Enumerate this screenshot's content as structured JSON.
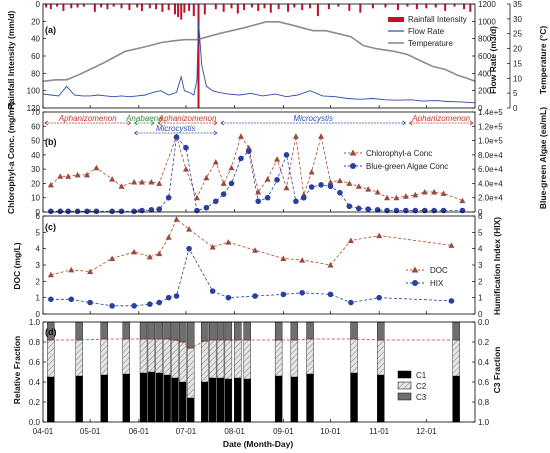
{
  "x_axis": {
    "label": "Date (Month-Day)",
    "tick_labels": [
      "04-01",
      "05-01",
      "06-01",
      "07-01",
      "08-01",
      "09-01",
      "10-01",
      "11-01",
      "12-01"
    ],
    "tick_days": [
      0,
      30,
      61,
      91,
      122,
      153,
      183,
      214,
      244
    ],
    "domain_days": [
      0,
      275
    ]
  },
  "panel_a": {
    "label": "(a)",
    "left_axis": {
      "label": "Rainfall Intensity (mm/d)",
      "ticks": [
        "0",
        "20",
        "40",
        "60",
        "80",
        "100",
        "120"
      ],
      "range": [
        0,
        120
      ],
      "inverted": true
    },
    "right_axis_1": {
      "label": "Flow Rate (m3/d)",
      "ticks": [
        "0",
        "200",
        "400",
        "600",
        "800",
        "1000",
        "1200"
      ],
      "range": [
        0,
        1200
      ]
    },
    "right_axis_2": {
      "label": "Temperature (°C)",
      "ticks": [
        "0",
        "5",
        "10",
        "15",
        "20",
        "25",
        "30",
        "35"
      ],
      "range": [
        0,
        35
      ]
    },
    "legend": [
      "Rainfall Intensity",
      "Flow Rate",
      "Temperature"
    ],
    "colors": {
      "rain": "#c0102a",
      "flow": "#2b4ab0",
      "temp": "#8c8c8c"
    }
  },
  "panel_b": {
    "label": "(b)",
    "left_axis": {
      "label": "Chlorophyl-a Conc. (mg/m³)",
      "ticks": [
        "0",
        "10",
        "20",
        "30",
        "40",
        "50",
        "60",
        "70"
      ],
      "range": [
        0,
        70
      ]
    },
    "right_axis": {
      "label": "Blue-green Algae (ea/mL)",
      "ticks": [
        "0",
        "2.0e+4",
        "4.0e+4",
        "6.0e+4",
        "8.0e+4",
        "1.0e+5",
        "1.2e+5",
        "1.4e+5"
      ],
      "range": [
        0,
        140000
      ]
    },
    "legend": [
      "Chlorophyl-a Conc",
      "Blue-green Algae Conc"
    ],
    "colors": {
      "chl": "#b5472b",
      "bga": "#2b3fa0"
    },
    "annotations": [
      {
        "text": "Aphanizomenon",
        "color": "#c0392b",
        "from": 0,
        "to": 57,
        "row": 0
      },
      {
        "text": "Anabaena",
        "color": "#2e8b3a",
        "from": 57,
        "to": 72,
        "row": 0
      },
      {
        "text": "Aphanizomenon",
        "color": "#c0392b",
        "from": 72,
        "to": 112,
        "row": 0
      },
      {
        "text": "Microcystis",
        "color": "#3050b8",
        "from": 112,
        "to": 232,
        "row": 0
      },
      {
        "text": "Aphanizomenon",
        "color": "#c0392b",
        "from": 232,
        "to": 275,
        "row": 0
      },
      {
        "text": "Microcystis",
        "color": "#3050b8",
        "from": 57,
        "to": 112,
        "row": 1
      }
    ]
  },
  "panel_c": {
    "label": "(c)",
    "left_axis": {
      "label": "DOC (mg/L)",
      "ticks": [
        "0",
        "1",
        "2",
        "3",
        "4",
        "5",
        "6"
      ],
      "range": [
        0,
        6
      ]
    },
    "right_axis": {
      "label": "Humification Index (HIX)",
      "ticks": [
        "0",
        "1",
        "2",
        "3",
        "4",
        "5",
        "6"
      ],
      "range": [
        0,
        6
      ]
    },
    "legend": [
      "DOC",
      "HIX"
    ],
    "colors": {
      "doc": "#b5472b",
      "hix": "#2b3fa0"
    }
  },
  "panel_d": {
    "label": "(d)",
    "left_axis": {
      "label": "Relative Fraction",
      "ticks": [
        "0.0",
        "0.2",
        "0.4",
        "0.6",
        "0.8",
        "1.0"
      ],
      "range": [
        0,
        1
      ]
    },
    "right_axis": {
      "label": "C3 Fraction",
      "ticks": [
        "0.0",
        "0.2",
        "0.4",
        "0.6",
        "0.8",
        "1.0"
      ],
      "range": [
        0,
        1
      ],
      "inverted": true
    },
    "legend": [
      "C1",
      "C2",
      "C3"
    ],
    "colors": {
      "c1": "#000000",
      "c2": "#d9d9d9",
      "c3": "#6e6e6e",
      "line": "#c0392b"
    }
  },
  "chart_data": {
    "type": "line",
    "panels": 4,
    "rainfall": {
      "name": "Rainfall Intensity",
      "x": [
        2,
        5,
        9,
        13,
        18,
        22,
        26,
        33,
        37,
        41,
        45,
        50,
        55,
        60,
        63,
        68,
        72,
        76,
        80,
        84,
        86,
        88,
        90,
        93,
        96,
        99,
        103,
        110,
        115,
        120,
        124,
        128,
        133,
        137,
        141,
        145,
        150,
        156,
        160,
        165,
        170,
        175,
        182,
        188,
        195,
        202,
        210,
        218,
        226,
        232,
        238,
        244,
        250,
        256,
        262,
        268,
        272
      ],
      "y": [
        4,
        6,
        3,
        8,
        5,
        4,
        3,
        9,
        4,
        6,
        3,
        5,
        7,
        4,
        8,
        5,
        6,
        9,
        7,
        12,
        15,
        18,
        10,
        8,
        14,
        120,
        12,
        6,
        9,
        5,
        11,
        7,
        4,
        8,
        5,
        10,
        6,
        9,
        4,
        7,
        5,
        14,
        6,
        3,
        8,
        10,
        5,
        4,
        7,
        3,
        6,
        5,
        4,
        8,
        3,
        6,
        9
      ]
    },
    "flow_rate": {
      "name": "Flow Rate",
      "x": [
        0,
        5,
        10,
        15,
        20,
        25,
        30,
        35,
        40,
        45,
        50,
        55,
        60,
        65,
        70,
        75,
        80,
        85,
        88,
        90,
        93,
        96,
        98,
        99,
        101,
        104,
        108,
        112,
        118,
        125,
        132,
        140,
        148,
        155,
        162,
        170,
        178,
        186,
        194,
        202,
        210,
        218,
        226,
        234,
        242,
        250,
        258,
        266,
        275
      ],
      "y": [
        160,
        150,
        140,
        250,
        150,
        140,
        140,
        150,
        140,
        130,
        140,
        130,
        140,
        150,
        180,
        200,
        150,
        180,
        360,
        200,
        180,
        150,
        320,
        1000,
        500,
        250,
        200,
        180,
        160,
        150,
        170,
        140,
        160,
        130,
        150,
        200,
        140,
        130,
        110,
        100,
        110,
        95,
        90,
        95,
        80,
        85,
        75,
        70,
        60
      ]
    },
    "temperature": {
      "name": "Temperature",
      "x": [
        0,
        8,
        15,
        22,
        30,
        38,
        45,
        52,
        60,
        68,
        75,
        82,
        90,
        98,
        105,
        112,
        120,
        128,
        135,
        142,
        150,
        158,
        165,
        172,
        180,
        188,
        196,
        204,
        212,
        218,
        224,
        232,
        240,
        248,
        256,
        264,
        270,
        275
      ],
      "y": [
        9,
        9.5,
        9.5,
        11,
        13,
        15,
        17,
        19,
        20,
        21,
        22,
        22.5,
        23,
        23,
        24,
        25,
        26,
        27,
        28,
        29,
        29,
        28,
        27,
        26,
        26,
        25,
        24,
        21,
        20,
        19.5,
        19,
        18,
        16,
        14,
        13,
        11,
        10,
        9
      ]
    },
    "chlorophyll_a": {
      "name": "Chlorophyl-a Conc",
      "x": [
        5,
        11,
        16,
        22,
        28,
        34,
        44,
        50,
        58,
        63,
        69,
        74,
        85,
        91,
        98,
        104,
        110,
        115,
        120,
        126,
        131,
        137,
        143,
        149,
        155,
        161,
        166,
        171,
        177,
        183,
        189,
        195,
        201,
        207,
        213,
        219,
        225,
        231,
        237,
        243,
        249,
        255,
        267
      ],
      "y": [
        19,
        25,
        25,
        26,
        26,
        31,
        23,
        18,
        21,
        21,
        21,
        20,
        53,
        30,
        10,
        24,
        35,
        20,
        31,
        53,
        45,
        14,
        23,
        37,
        17,
        53,
        12,
        28,
        53,
        21,
        22,
        20,
        18,
        16,
        14,
        10,
        10,
        11,
        12,
        14,
        14,
        13,
        8
      ]
    },
    "blue_green_algae": {
      "name": "Blue-green Algae Conc",
      "x": [
        5,
        11,
        16,
        22,
        28,
        34,
        44,
        50,
        58,
        63,
        69,
        74,
        80,
        85,
        91,
        98,
        104,
        110,
        115,
        120,
        126,
        131,
        137,
        143,
        149,
        155,
        161,
        166,
        171,
        177,
        183,
        189,
        195,
        201,
        207,
        213,
        219,
        225,
        231,
        237,
        243,
        249,
        255,
        267
      ],
      "y": [
        1000,
        1000,
        1000,
        1000,
        1000,
        1000,
        1000,
        1000,
        1000,
        2000,
        3000,
        4000,
        20000,
        105000,
        90000,
        2000,
        6000,
        15000,
        25000,
        40000,
        75000,
        85000,
        15000,
        20000,
        45000,
        80000,
        15000,
        20000,
        35000,
        38000,
        36000,
        27000,
        8000,
        5000,
        4000,
        3000,
        2000,
        2000,
        2000,
        2000,
        2000,
        2000,
        2000,
        2000
      ]
    },
    "doc": {
      "name": "DOC",
      "x": [
        5,
        18,
        30,
        44,
        58,
        68,
        74,
        80,
        85,
        93,
        108,
        118,
        135,
        153,
        165,
        183,
        196,
        214,
        260
      ],
      "y": [
        2.4,
        2.7,
        2.6,
        3.4,
        3.8,
        3.5,
        3.7,
        4.7,
        5.8,
        5.2,
        4.1,
        4.4,
        3.9,
        3.4,
        3.3,
        3.0,
        4.5,
        4.8,
        4.2
      ]
    },
    "hix": {
      "name": "HIX",
      "x": [
        5,
        18,
        30,
        44,
        58,
        68,
        74,
        80,
        85,
        93,
        108,
        118,
        135,
        153,
        165,
        183,
        196,
        214,
        260
      ],
      "y": [
        0.9,
        0.9,
        0.7,
        0.5,
        0.5,
        0.6,
        0.7,
        1.0,
        1.1,
        4.0,
        1.4,
        1.0,
        1.1,
        1.2,
        1.3,
        1.2,
        0.7,
        1.0,
        0.8
      ]
    },
    "fractions": {
      "x": [
        5,
        23,
        39,
        53,
        64,
        69,
        74,
        79,
        84,
        89,
        94,
        103,
        108,
        113,
        118,
        124,
        130,
        150,
        160,
        170,
        198,
        215,
        263
      ],
      "c1": [
        0.45,
        0.46,
        0.47,
        0.48,
        0.49,
        0.5,
        0.49,
        0.47,
        0.44,
        0.4,
        0.24,
        0.4,
        0.44,
        0.44,
        0.43,
        0.44,
        0.43,
        0.46,
        0.45,
        0.48,
        0.49,
        0.47,
        0.46
      ],
      "c2": [
        0.37,
        0.36,
        0.36,
        0.35,
        0.34,
        0.33,
        0.34,
        0.36,
        0.38,
        0.4,
        0.5,
        0.41,
        0.38,
        0.38,
        0.39,
        0.38,
        0.39,
        0.36,
        0.37,
        0.35,
        0.34,
        0.35,
        0.36
      ]
    }
  }
}
